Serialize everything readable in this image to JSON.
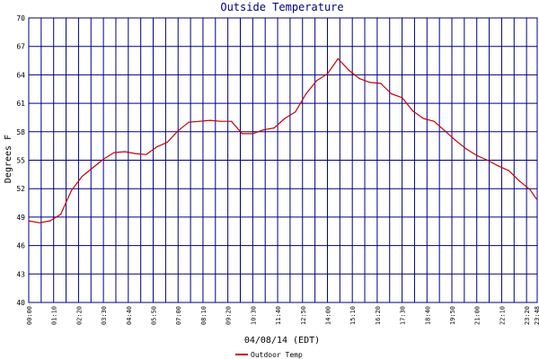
{
  "chart_data": {
    "type": "line",
    "title": "Outside Temperature",
    "ylabel": "Degrees F",
    "xlabel": "04/08/14 (EDT)",
    "ylim": [
      40,
      70
    ],
    "xlim": [
      0,
      1430
    ],
    "grid": true,
    "legend_position": "bottom-left",
    "y_ticks": [
      "40",
      "43",
      "46",
      "49",
      "52",
      "55",
      "58",
      "61",
      "64",
      "67",
      "70"
    ],
    "x_ticks": [
      "00:00",
      "01:10",
      "02:20",
      "03:30",
      "04:40",
      "05:50",
      "07:00",
      "08:10",
      "09:20",
      "10:30",
      "11:40",
      "12:50",
      "14:00",
      "15:10",
      "16:20",
      "17:30",
      "18:40",
      "19:50",
      "21:00",
      "22:10",
      "23:20",
      "23:48"
    ],
    "series": [
      {
        "name": "Outdoor Temp",
        "color": "#cc0000",
        "x": [
          "00:00",
          "00:30",
          "01:00",
          "01:30",
          "02:00",
          "02:30",
          "03:00",
          "03:30",
          "04:00",
          "04:30",
          "05:00",
          "05:30",
          "06:00",
          "06:30",
          "07:00",
          "07:30",
          "08:00",
          "08:30",
          "09:00",
          "09:30",
          "10:00",
          "10:30",
          "11:00",
          "11:30",
          "12:00",
          "12:30",
          "13:00",
          "13:30",
          "14:00",
          "14:30",
          "15:00",
          "15:30",
          "16:00",
          "16:30",
          "17:00",
          "17:30",
          "18:00",
          "18:30",
          "19:00",
          "19:30",
          "20:00",
          "20:30",
          "21:00",
          "21:30",
          "22:00",
          "22:30",
          "23:00",
          "23:30",
          "23:48"
        ],
        "values": [
          48.6,
          48.4,
          48.6,
          49.3,
          51.8,
          53.3,
          54.2,
          55.1,
          55.8,
          55.9,
          55.7,
          55.6,
          56.4,
          56.9,
          58.1,
          59.0,
          59.1,
          59.2,
          59.1,
          59.1,
          57.8,
          57.8,
          58.2,
          58.4,
          59.4,
          60.1,
          62.0,
          63.4,
          64.1,
          65.7,
          64.5,
          63.6,
          63.2,
          63.1,
          62.0,
          61.6,
          60.2,
          59.4,
          59.1,
          58.1,
          57.1,
          56.2,
          55.5,
          55.0,
          54.4,
          53.9,
          52.8,
          51.9,
          50.9
        ]
      }
    ]
  }
}
